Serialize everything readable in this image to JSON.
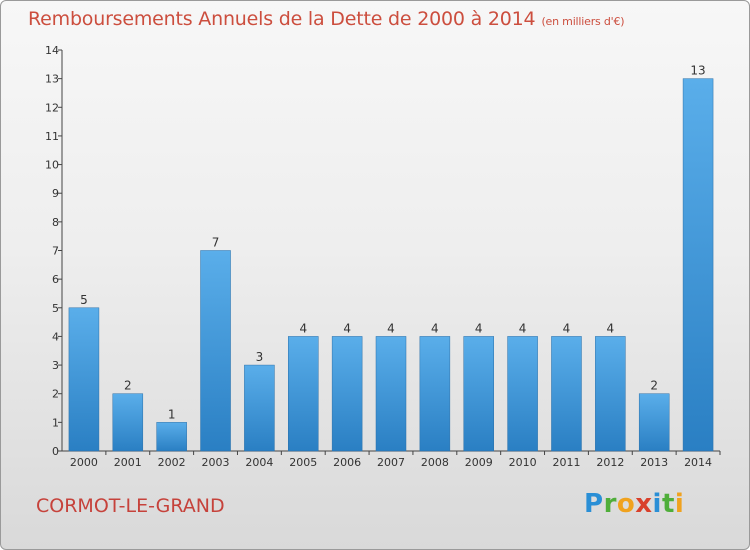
{
  "header": {
    "title": "Remboursements Annuels de la Dette de 2000 à 2014",
    "subtitle": "(en milliers d'€)"
  },
  "footer": {
    "commune": "CORMOT-LE-GRAND",
    "logo": "Proxiti"
  },
  "colors": {
    "bar_top": "#5aaeea",
    "bar_bottom": "#2a7fc3",
    "title": "#cc4e3e"
  },
  "chart_data": {
    "type": "bar",
    "title": "Remboursements Annuels de la Dette de 2000 à 2014",
    "subtitle": "(en milliers d'€)",
    "categories": [
      "2000",
      "2001",
      "2002",
      "2003",
      "2004",
      "2005",
      "2006",
      "2007",
      "2008",
      "2009",
      "2010",
      "2011",
      "2012",
      "2013",
      "2014"
    ],
    "values": [
      5,
      2,
      1,
      7,
      3,
      4,
      4,
      4,
      4,
      4,
      4,
      4,
      4,
      2,
      13
    ],
    "xlabel": "",
    "ylabel": "",
    "ylim": [
      0,
      14
    ],
    "yticks": [
      0,
      1,
      2,
      3,
      4,
      5,
      6,
      7,
      8,
      9,
      10,
      11,
      12,
      13,
      14
    ],
    "grid": false,
    "legend": "none"
  }
}
